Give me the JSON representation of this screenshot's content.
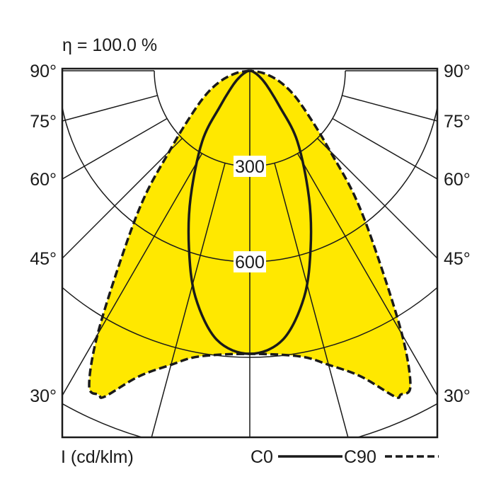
{
  "chart_data": {
    "type": "polar",
    "efficiency_label": "η = 100.0 %",
    "unit_label": "I (cd/klm)",
    "angle_labels": [
      "90°",
      "75°",
      "60°",
      "45°",
      "30°"
    ],
    "angle_ticks_deg": [
      90,
      75,
      60,
      45,
      30
    ],
    "radial_lines_deg": [
      0,
      15,
      30,
      45,
      60,
      75,
      90
    ],
    "ring_values": [
      300,
      600,
      900,
      1200
    ],
    "ring_labels": [
      "300",
      "600"
    ],
    "fill_color": "#FFE800",
    "series": [
      {
        "name": "C0",
        "style": "solid",
        "angles": [
          0,
          7,
          13.5,
          19,
          25,
          34,
          40,
          50,
          60,
          75,
          90
        ],
        "values": [
          889,
          851,
          731,
          587,
          440,
          267,
          144,
          67,
          33,
          10,
          0
        ]
      },
      {
        "name": "C90",
        "style": "dashed",
        "angles": [
          0,
          10,
          15,
          20,
          24,
          25,
          27,
          30,
          35,
          40,
          45,
          50,
          60,
          70,
          80,
          90
        ],
        "values": [
          889,
          911,
          956,
          1022,
          1120,
          1122,
          1111,
          956,
          689,
          511,
          356,
          267,
          167,
          100,
          44,
          0
        ]
      }
    ],
    "legend": [
      {
        "label": "C0",
        "style": "solid"
      },
      {
        "label": "C90",
        "style": "dashed"
      }
    ]
  }
}
